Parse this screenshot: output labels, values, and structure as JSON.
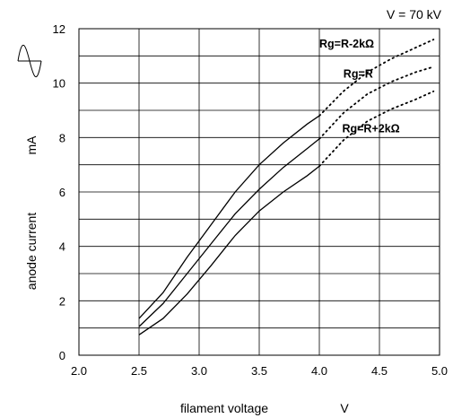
{
  "chart_data": {
    "type": "line",
    "title": "",
    "condition": "V = 70 kV",
    "xlabel": "filament voltage",
    "xunit": "V",
    "ylabel": "anode current",
    "yunit": "mA",
    "xlim": [
      2.0,
      5.0
    ],
    "ylim": [
      0,
      12
    ],
    "x_ticks": [
      "2.0",
      "2.5",
      "3.0",
      "3.5",
      "4.0",
      "4.5",
      "5.0"
    ],
    "y_ticks": [
      "0",
      "2",
      "4",
      "6",
      "8",
      "10",
      "12"
    ],
    "grid": true,
    "symbol_icon": "sine-wave-icon",
    "series": [
      {
        "name": "Rg=R-2kΩ",
        "values": [
          [
            2.5,
            1.35
          ],
          [
            2.7,
            2.3
          ],
          [
            2.9,
            3.6
          ],
          [
            3.1,
            4.8
          ],
          [
            3.3,
            6.0
          ],
          [
            3.5,
            7.0
          ],
          [
            3.7,
            7.8
          ],
          [
            3.9,
            8.5
          ],
          [
            4.0,
            8.8
          ]
        ],
        "extrapolated": [
          [
            4.0,
            8.8
          ],
          [
            4.2,
            9.7
          ],
          [
            4.4,
            10.4
          ],
          [
            4.6,
            10.9
          ],
          [
            4.8,
            11.3
          ],
          [
            4.95,
            11.6
          ]
        ]
      },
      {
        "name": "Rg=R",
        "values": [
          [
            2.5,
            1.05
          ],
          [
            2.7,
            1.9
          ],
          [
            2.9,
            3.0
          ],
          [
            3.1,
            4.1
          ],
          [
            3.3,
            5.2
          ],
          [
            3.5,
            6.1
          ],
          [
            3.7,
            6.9
          ],
          [
            3.9,
            7.6
          ],
          [
            4.0,
            7.95
          ]
        ],
        "extrapolated": [
          [
            4.0,
            7.95
          ],
          [
            4.2,
            8.9
          ],
          [
            4.4,
            9.6
          ],
          [
            4.6,
            10.05
          ],
          [
            4.8,
            10.4
          ],
          [
            4.95,
            10.6
          ]
        ]
      },
      {
        "name": "Rg=R+2kΩ",
        "values": [
          [
            2.5,
            0.75
          ],
          [
            2.7,
            1.35
          ],
          [
            2.9,
            2.25
          ],
          [
            3.1,
            3.3
          ],
          [
            3.3,
            4.4
          ],
          [
            3.5,
            5.3
          ],
          [
            3.7,
            6.0
          ],
          [
            3.9,
            6.6
          ],
          [
            4.0,
            6.95
          ]
        ],
        "extrapolated": [
          [
            4.0,
            6.95
          ],
          [
            4.2,
            7.9
          ],
          [
            4.4,
            8.6
          ],
          [
            4.6,
            9.05
          ],
          [
            4.8,
            9.4
          ],
          [
            4.95,
            9.7
          ]
        ]
      }
    ]
  }
}
